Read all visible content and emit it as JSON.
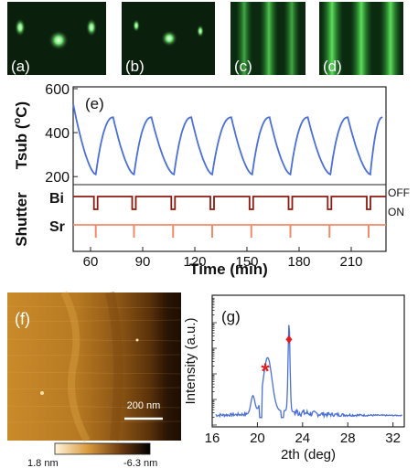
{
  "rheed_panels": [
    {
      "label": "(a)"
    },
    {
      "label": "(b)"
    },
    {
      "label": "(c)"
    },
    {
      "label": "(d)"
    }
  ],
  "panel_e": {
    "label": "(e)",
    "ylabel_main": "Tsub (",
    "ylabel_sup": "o",
    "ylabel_tail": "C)",
    "xlabel": "Time (min)",
    "shutter_label": "Shutter",
    "bi_label": "Bi",
    "sr_label": "Sr",
    "off_label": "OFF",
    "on_label": "ON"
  },
  "panel_f": {
    "label": "(f)",
    "scale_bar": "200 nm",
    "colorbar_min": "1.8 nm",
    "colorbar_max": "-6.3 nm"
  },
  "panel_g": {
    "label": "(g)",
    "ylabel": "Intensity (a.u.)",
    "xlabel": "2th (deg)",
    "star_marker": "*",
    "diamond_marker": "♦"
  },
  "colors": {
    "curve": "#4a6fd8",
    "bi": "#8b1a10",
    "sr": "#f08a6a",
    "marker": "#e02020",
    "rheed_green": "#39d24a"
  },
  "chart_data": [
    {
      "type": "line",
      "x_ticks": [
        "60",
        "90",
        "120",
        "150",
        "180",
        "210"
      ],
      "y_ticks": [
        "600",
        "400",
        "200"
      ],
      "xlim": [
        50,
        230
      ],
      "ylim": [
        180,
        600
      ],
      "series": [
        {
          "x": [
            50,
            63,
            73,
            85,
            95,
            108,
            118,
            130,
            141,
            153,
            163,
            175,
            185,
            198,
            208,
            221,
            228
          ],
          "y": [
            530,
            210,
            470,
            210,
            470,
            210,
            470,
            210,
            470,
            210,
            470,
            210,
            470,
            210,
            470,
            210,
            470
          ]
        }
      ],
      "bi_pulses": [
        63,
        85,
        107.5,
        130,
        152.5,
        175,
        197.5,
        220
      ],
      "sr_pulses": [
        63,
        85,
        107.5,
        130,
        152.5,
        175,
        197.5,
        220
      ]
    },
    {
      "type": "line",
      "x_ticks": [
        "16",
        "20",
        "24",
        "28",
        "32"
      ],
      "xlim": [
        16,
        33
      ],
      "y_log_decades": 5
    }
  ]
}
